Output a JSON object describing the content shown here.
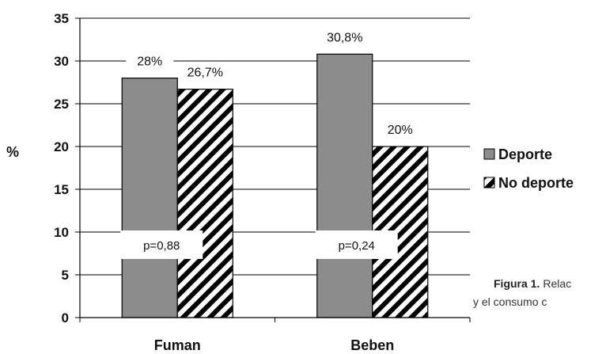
{
  "chart_data": {
    "type": "bar",
    "categories": [
      "Fuman",
      "Beben"
    ],
    "series": [
      {
        "name": "Deporte",
        "values": [
          28,
          30.8
        ],
        "labels": [
          "28%",
          "30,8%"
        ],
        "color": "#8c8c8c",
        "pattern": "solid"
      },
      {
        "name": "No deporte",
        "values": [
          26.7,
          20
        ],
        "labels": [
          "26,7%",
          "20%"
        ],
        "color": "#000000",
        "pattern": "diagonal-hatch"
      }
    ],
    "ylabel": "%",
    "ylim": [
      0,
      35
    ],
    "yticks": [
      "0",
      "5",
      "10",
      "15",
      "20",
      "25",
      "30",
      "35"
    ],
    "grid": true,
    "legend_position": "right",
    "annotations": [
      "p=0,88",
      "p=0,24"
    ]
  },
  "caption": {
    "bold": "Figura 1.",
    "line1_rest": "Relac",
    "line2": "y el consumo c"
  }
}
